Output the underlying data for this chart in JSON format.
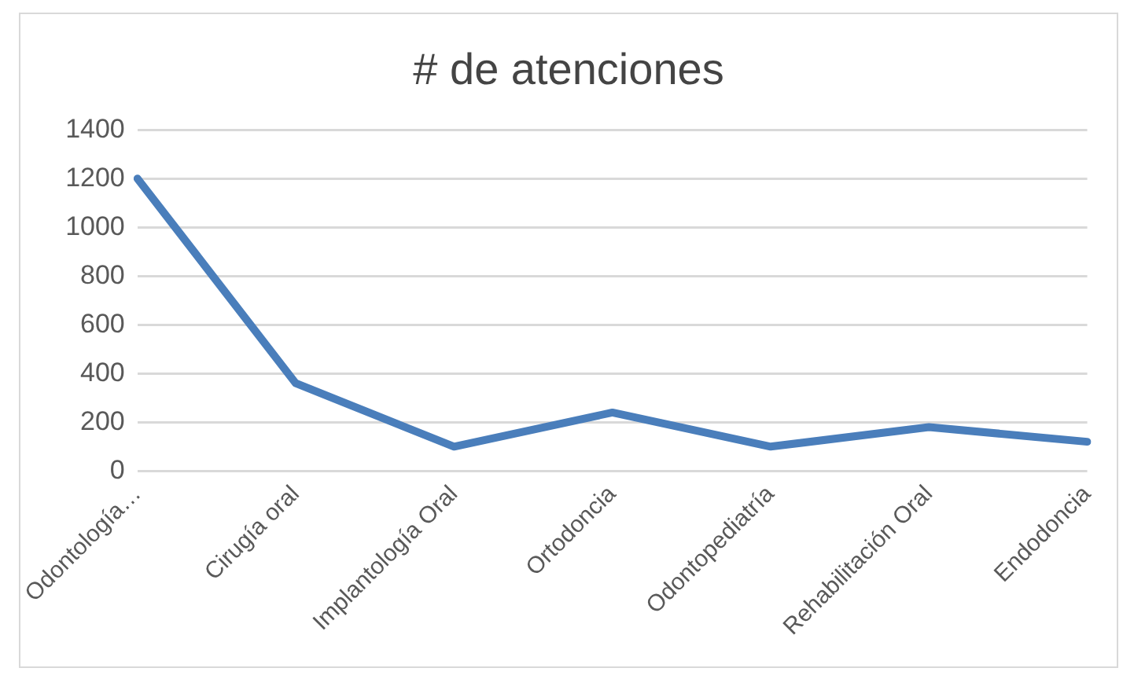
{
  "chart_data": {
    "type": "line",
    "title": "# de atenciones",
    "categories": [
      "Odontología…",
      "Cirugía oral",
      "Implantología Oral",
      "Ortodoncia",
      "Odontopediatría",
      "Rehabilitación Oral",
      "Endodoncia"
    ],
    "series": [
      {
        "color": "#4a7ebb",
        "values": [
          1200,
          360,
          100,
          240,
          100,
          180,
          120
        ]
      }
    ],
    "ylim": [
      0,
      1400
    ],
    "yticks": [
      0,
      200,
      400,
      600,
      800,
      1000,
      1200,
      1400
    ],
    "grid": "y",
    "marker": "none",
    "line_style": "solid",
    "legend": false
  }
}
